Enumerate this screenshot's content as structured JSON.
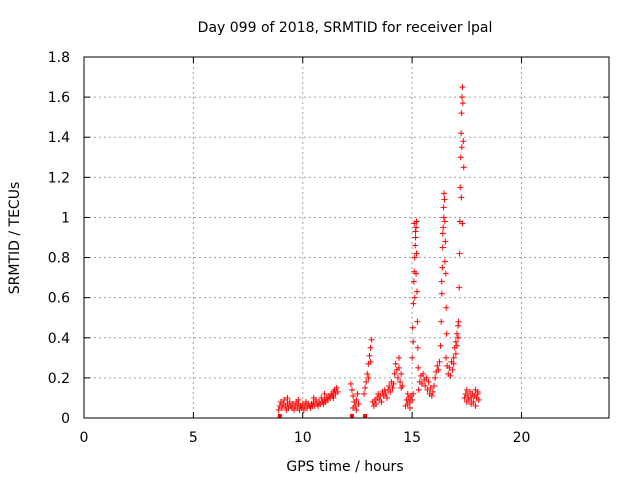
{
  "chart_data": {
    "type": "scatter",
    "title": "Day 099 of 2018, SRMTID for receiver lpal",
    "xlabel": "GPS time / hours",
    "ylabel": "SRMTID / TECUs",
    "xlim": [
      0,
      24
    ],
    "ylim": [
      0,
      1.8
    ],
    "xticks": [
      0,
      5,
      10,
      15,
      20
    ],
    "yticks": [
      0,
      0.2,
      0.4,
      0.6,
      0.8,
      1,
      1.2,
      1.4,
      1.6,
      1.8
    ],
    "xtick_labels": [
      "0",
      "5",
      "10",
      "15",
      "20"
    ],
    "ytick_labels": [
      "0",
      "0.2",
      "0.4",
      "0.6",
      "0.8",
      "1",
      "1.2",
      "1.4",
      "1.6",
      "1.8"
    ],
    "grid": true,
    "marker": "+",
    "color": "#ff0000",
    "series": [
      {
        "name": "SRMTID",
        "points": [
          [
            8.9,
            0.04
          ],
          [
            8.95,
            0.06
          ],
          [
            9.0,
            0.08
          ],
          [
            9.05,
            0.05
          ],
          [
            9.1,
            0.07
          ],
          [
            9.15,
            0.09
          ],
          [
            9.2,
            0.06
          ],
          [
            9.25,
            0.04
          ],
          [
            9.3,
            0.07
          ],
          [
            9.35,
            0.05
          ],
          [
            9.4,
            0.08
          ],
          [
            9.45,
            0.06
          ],
          [
            9.5,
            0.05
          ],
          [
            9.55,
            0.07
          ],
          [
            9.6,
            0.04
          ],
          [
            9.65,
            0.06
          ],
          [
            9.7,
            0.08
          ],
          [
            9.75,
            0.05
          ],
          [
            9.8,
            0.07
          ],
          [
            9.85,
            0.04
          ],
          [
            9.9,
            0.06
          ],
          [
            9.95,
            0.05
          ],
          [
            10.0,
            0.07
          ],
          [
            10.05,
            0.04
          ],
          [
            10.1,
            0.06
          ],
          [
            10.15,
            0.08
          ],
          [
            10.2,
            0.05
          ],
          [
            10.25,
            0.07
          ],
          [
            10.3,
            0.06
          ],
          [
            10.35,
            0.05
          ],
          [
            10.4,
            0.07
          ],
          [
            10.45,
            0.06
          ],
          [
            10.5,
            0.08
          ],
          [
            10.55,
            0.06
          ],
          [
            10.6,
            0.09
          ],
          [
            10.65,
            0.07
          ],
          [
            10.7,
            0.06
          ],
          [
            10.75,
            0.08
          ],
          [
            10.8,
            0.07
          ],
          [
            10.85,
            0.1
          ],
          [
            10.9,
            0.08
          ],
          [
            10.95,
            0.07
          ],
          [
            11.0,
            0.09
          ],
          [
            11.05,
            0.08
          ],
          [
            11.1,
            0.1
          ],
          [
            11.15,
            0.09
          ],
          [
            11.2,
            0.11
          ],
          [
            11.25,
            0.1
          ],
          [
            11.3,
            0.12
          ],
          [
            11.35,
            0.11
          ],
          [
            11.4,
            0.13
          ],
          [
            11.45,
            0.14
          ],
          [
            11.5,
            0.12
          ],
          [
            11.55,
            0.15
          ],
          [
            11.6,
            0.13
          ],
          [
            9.3,
            0.1
          ],
          [
            9.8,
            0.09
          ],
          [
            10.5,
            0.1
          ],
          [
            11.0,
            0.12
          ],
          [
            11.4,
            0.1
          ],
          [
            12.2,
            0.17
          ],
          [
            12.25,
            0.14
          ],
          [
            12.3,
            0.11
          ],
          [
            12.35,
            0.08
          ],
          [
            12.4,
            0.06
          ],
          [
            12.45,
            0.09
          ],
          [
            12.5,
            0.12
          ],
          [
            12.55,
            0.07
          ],
          [
            12.3,
            0.05
          ],
          [
            12.45,
            0.04
          ],
          [
            12.8,
            0.12
          ],
          [
            12.85,
            0.15
          ],
          [
            12.9,
            0.18
          ],
          [
            12.95,
            0.22
          ],
          [
            13.0,
            0.27
          ],
          [
            13.05,
            0.31
          ],
          [
            13.1,
            0.35
          ],
          [
            13.15,
            0.39
          ],
          [
            13.0,
            0.2
          ],
          [
            13.1,
            0.28
          ],
          [
            13.2,
            0.08
          ],
          [
            13.25,
            0.06
          ],
          [
            13.3,
            0.09
          ],
          [
            13.35,
            0.07
          ],
          [
            13.4,
            0.1
          ],
          [
            13.45,
            0.12
          ],
          [
            13.5,
            0.09
          ],
          [
            13.55,
            0.11
          ],
          [
            13.6,
            0.08
          ],
          [
            13.65,
            0.13
          ],
          [
            13.7,
            0.11
          ],
          [
            13.75,
            0.14
          ],
          [
            13.8,
            0.12
          ],
          [
            13.85,
            0.1
          ],
          [
            13.9,
            0.14
          ],
          [
            13.95,
            0.16
          ],
          [
            14.0,
            0.13
          ],
          [
            14.05,
            0.18
          ],
          [
            14.1,
            0.15
          ],
          [
            14.15,
            0.17
          ],
          [
            14.2,
            0.22
          ],
          [
            14.25,
            0.27
          ],
          [
            14.3,
            0.24
          ],
          [
            14.35,
            0.2
          ],
          [
            14.4,
            0.25
          ],
          [
            14.45,
            0.18
          ],
          [
            14.5,
            0.22
          ],
          [
            14.55,
            0.16
          ],
          [
            14.4,
            0.3
          ],
          [
            14.5,
            0.15
          ],
          [
            14.7,
            0.06
          ],
          [
            14.75,
            0.09
          ],
          [
            14.8,
            0.07
          ],
          [
            14.85,
            0.1
          ],
          [
            14.9,
            0.08
          ],
          [
            14.95,
            0.11
          ],
          [
            15.0,
            0.09
          ],
          [
            15.05,
            0.12
          ],
          [
            14.8,
            0.12
          ],
          [
            14.9,
            0.05
          ],
          [
            15.0,
            0.3
          ],
          [
            15.03,
            0.45
          ],
          [
            15.06,
            0.57
          ],
          [
            15.08,
            0.68
          ],
          [
            15.1,
            0.73
          ],
          [
            15.12,
            0.8
          ],
          [
            15.14,
            0.86
          ],
          [
            15.16,
            0.9
          ],
          [
            15.18,
            0.95
          ],
          [
            15.2,
            0.98
          ],
          [
            15.1,
            0.97
          ],
          [
            15.15,
            0.93
          ],
          [
            15.2,
            0.82
          ],
          [
            15.22,
            0.63
          ],
          [
            15.24,
            0.48
          ],
          [
            15.26,
            0.35
          ],
          [
            15.28,
            0.25
          ],
          [
            15.05,
            0.38
          ],
          [
            15.12,
            0.6
          ],
          [
            15.18,
            0.72
          ],
          [
            15.3,
            0.14
          ],
          [
            15.35,
            0.18
          ],
          [
            15.4,
            0.21
          ],
          [
            15.45,
            0.17
          ],
          [
            15.5,
            0.22
          ],
          [
            15.55,
            0.19
          ],
          [
            15.6,
            0.16
          ],
          [
            15.65,
            0.2
          ],
          [
            15.7,
            0.14
          ],
          [
            15.75,
            0.18
          ],
          [
            15.8,
            0.12
          ],
          [
            15.85,
            0.15
          ],
          [
            15.9,
            0.11
          ],
          [
            15.95,
            0.13
          ],
          [
            16.0,
            0.16
          ],
          [
            16.05,
            0.2
          ],
          [
            16.1,
            0.23
          ],
          [
            16.15,
            0.26
          ],
          [
            16.2,
            0.24
          ],
          [
            16.25,
            0.28
          ],
          [
            16.3,
            0.36
          ],
          [
            16.33,
            0.48
          ],
          [
            16.36,
            0.62
          ],
          [
            16.38,
            0.75
          ],
          [
            16.4,
            0.85
          ],
          [
            16.42,
            0.95
          ],
          [
            16.44,
            1.05
          ],
          [
            16.46,
            1.12
          ],
          [
            16.48,
            1.09
          ],
          [
            16.5,
            0.98
          ],
          [
            16.52,
            0.88
          ],
          [
            16.54,
            0.72
          ],
          [
            16.56,
            0.55
          ],
          [
            16.58,
            0.42
          ],
          [
            16.35,
            0.68
          ],
          [
            16.45,
            1.0
          ],
          [
            16.5,
            0.78
          ],
          [
            16.4,
            0.92
          ],
          [
            16.55,
            0.3
          ],
          [
            16.6,
            0.26
          ],
          [
            16.65,
            0.22
          ],
          [
            16.7,
            0.25
          ],
          [
            16.75,
            0.21
          ],
          [
            16.8,
            0.28
          ],
          [
            16.85,
            0.24
          ],
          [
            16.9,
            0.3
          ],
          [
            16.95,
            0.35
          ],
          [
            17.0,
            0.38
          ],
          [
            17.05,
            0.42
          ],
          [
            17.1,
            0.46
          ],
          [
            16.9,
            0.27
          ],
          [
            17.0,
            0.32
          ],
          [
            17.05,
            0.36
          ],
          [
            17.1,
            0.4
          ],
          [
            17.12,
            0.48
          ],
          [
            17.15,
            0.65
          ],
          [
            17.17,
            0.82
          ],
          [
            17.18,
            0.98
          ],
          [
            17.2,
            1.15
          ],
          [
            17.22,
            1.3
          ],
          [
            17.24,
            1.42
          ],
          [
            17.26,
            1.52
          ],
          [
            17.28,
            1.6
          ],
          [
            17.3,
            1.65
          ],
          [
            17.32,
            1.57
          ],
          [
            17.34,
            1.38
          ],
          [
            17.36,
            1.25
          ],
          [
            17.25,
            1.1
          ],
          [
            17.3,
            0.97
          ],
          [
            17.27,
            1.35
          ],
          [
            17.4,
            0.1
          ],
          [
            17.45,
            0.12
          ],
          [
            17.5,
            0.08
          ],
          [
            17.55,
            0.11
          ],
          [
            17.6,
            0.09
          ],
          [
            17.65,
            0.13
          ],
          [
            17.7,
            0.1
          ],
          [
            17.75,
            0.12
          ],
          [
            17.8,
            0.08
          ],
          [
            17.85,
            0.11
          ],
          [
            17.9,
            0.14
          ],
          [
            17.95,
            0.1
          ],
          [
            18.0,
            0.12
          ],
          [
            18.05,
            0.09
          ],
          [
            17.5,
            0.14
          ],
          [
            17.7,
            0.07
          ],
          [
            17.9,
            0.06
          ],
          [
            18.0,
            0.13
          ]
        ]
      }
    ],
    "squares": [
      [
        8.95,
        0.0
      ],
      [
        12.25,
        0.0
      ],
      [
        12.85,
        0.0
      ]
    ]
  }
}
